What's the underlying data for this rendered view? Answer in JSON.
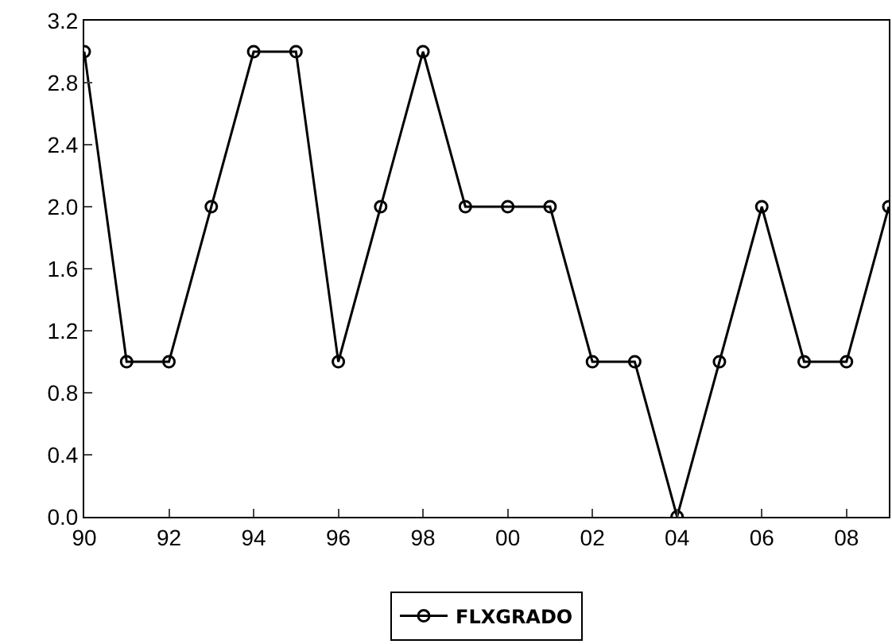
{
  "chart_data": {
    "type": "line",
    "x": [
      1990,
      1991,
      1992,
      1993,
      1994,
      1995,
      1996,
      1997,
      1998,
      1999,
      2000,
      2001,
      2002,
      2003,
      2004,
      2005,
      2006,
      2007,
      2008,
      2009
    ],
    "series": [
      {
        "name": "FLXGRADO",
        "color": "#000000",
        "values": [
          3,
          1,
          1,
          2,
          3,
          3,
          1,
          2,
          3,
          2,
          2,
          2,
          1,
          1,
          0,
          1,
          2,
          1,
          1,
          2
        ]
      }
    ],
    "xlim": [
      1990,
      2009
    ],
    "xticks": [
      {
        "value": 1990,
        "label": "90"
      },
      {
        "value": 1992,
        "label": "92"
      },
      {
        "value": 1994,
        "label": "94"
      },
      {
        "value": 1996,
        "label": "96"
      },
      {
        "value": 1998,
        "label": "98"
      },
      {
        "value": 2000,
        "label": "00"
      },
      {
        "value": 2002,
        "label": "02"
      },
      {
        "value": 2004,
        "label": "04"
      },
      {
        "value": 2006,
        "label": "06"
      },
      {
        "value": 2008,
        "label": "08"
      }
    ],
    "ylim": [
      0,
      3.2
    ],
    "yticks": [
      {
        "value": 0,
        "label": "0.0"
      },
      {
        "value": 0.4,
        "label": "0.4"
      },
      {
        "value": 0.8,
        "label": "0.8"
      },
      {
        "value": 1.2,
        "label": "1.2"
      },
      {
        "value": 1.6,
        "label": "1.6"
      },
      {
        "value": 2,
        "label": "2.0"
      },
      {
        "value": 2.4,
        "label": "2.4"
      },
      {
        "value": 2.8,
        "label": "2.8"
      },
      {
        "value": 3.2,
        "label": "3.2"
      }
    ],
    "grid": false,
    "legend": "bottom",
    "marker": "circle",
    "line_style": "solid"
  }
}
